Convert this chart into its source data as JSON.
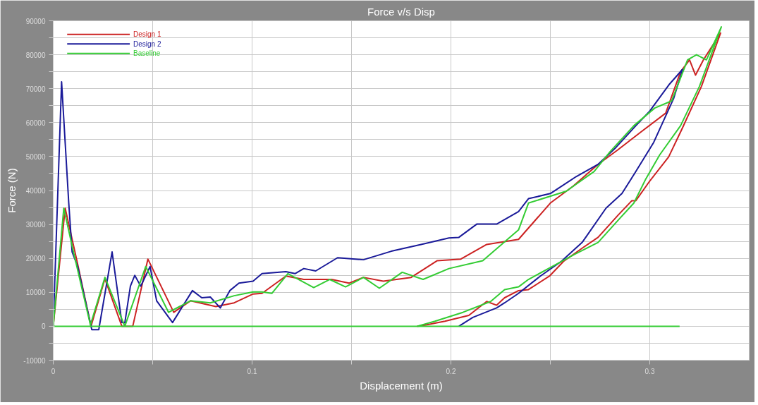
{
  "chart_data": {
    "type": "line",
    "title": "Force v/s Disp",
    "xlabel": "Displacement (m)",
    "ylabel": "Force (N)",
    "xlim": [
      0,
      0.35
    ],
    "ylim": [
      -10000,
      90000
    ],
    "xticks": [
      0,
      {
        "value": 0.05,
        "label": null
      },
      0.1,
      {
        "value": 0.15,
        "label": null
      },
      0.2,
      {
        "value": 0.25,
        "label": null
      },
      0.3
    ],
    "yticks": [
      -10000,
      {
        "value": -5000,
        "label": null
      },
      0,
      {
        "value": 5000,
        "label": null
      },
      10000,
      {
        "value": 15000,
        "label": null
      },
      20000,
      {
        "value": 25000,
        "label": null
      },
      30000,
      {
        "value": 35000,
        "label": null
      },
      40000,
      {
        "value": 45000,
        "label": null
      },
      50000,
      {
        "value": 55000,
        "label": null
      },
      60000,
      {
        "value": 65000,
        "label": null
      },
      70000,
      {
        "value": 75000,
        "label": null
      },
      80000,
      {
        "value": 85000,
        "label": null
      },
      90000
    ],
    "grid": true,
    "legend": "top left",
    "marker": "none",
    "line_style": "solid",
    "series": [
      {
        "name": "Design 1",
        "color": "#cc2222",
        "x": [
          0,
          0.006,
          0.0123,
          0.019,
          0.026,
          0.0345,
          0.04,
          0.0476,
          0.0606,
          0.069,
          0.0818,
          0.091,
          0.1005,
          0.105,
          0.117,
          0.126,
          0.14,
          0.1487,
          0.156,
          0.166,
          0.18,
          0.193,
          0.205,
          0.218,
          0.234,
          0.25,
          0.2615,
          0.274,
          0.284,
          0.295,
          0.308,
          0.3155,
          0.32,
          0.323,
          0.327,
          0.3356,
          0.326,
          0.3165,
          0.3095,
          0.3,
          0.293,
          0.291,
          0.284,
          0.274,
          0.266,
          0.2566,
          0.2496,
          0.239,
          0.234,
          0.227,
          0.223,
          0.218,
          0.209,
          0.197,
          0.1875,
          0.183
        ],
        "values": [
          0,
          34800,
          18300,
          0,
          14000,
          0,
          0,
          19800,
          4100,
          7500,
          5800,
          6900,
          9500,
          9700,
          14800,
          13800,
          13800,
          12700,
          14400,
          13300,
          14400,
          19300,
          19800,
          24100,
          25600,
          36300,
          41300,
          47700,
          52000,
          57000,
          62800,
          75000,
          78500,
          74000,
          78500,
          86400,
          70700,
          58500,
          49900,
          42800,
          37000,
          37000,
          32700,
          26200,
          23000,
          19100,
          14800,
          10800,
          10500,
          8400,
          6200,
          7300,
          3200,
          1500,
          400,
          0
        ]
      },
      {
        "name": "Design 2",
        "color": "#1a1a99",
        "x": [
          0,
          0.0042,
          0.0078,
          0.0095,
          0.0123,
          0.0194,
          0.0229,
          0.0296,
          0.0345,
          0.036,
          0.0388,
          0.041,
          0.044,
          0.0487,
          0.052,
          0.06,
          0.07,
          0.0747,
          0.079,
          0.084,
          0.0888,
          0.0934,
          0.1005,
          0.105,
          0.117,
          0.1216,
          0.126,
          0.132,
          0.143,
          0.156,
          0.17,
          0.185,
          0.199,
          0.204,
          0.213,
          0.223,
          0.234,
          0.239,
          0.25,
          0.263,
          0.274,
          0.283,
          0.293,
          0.3,
          0.31,
          0.3165,
          0.312,
          0.302,
          0.293,
          0.286,
          0.278,
          0.266,
          0.2555,
          0.245,
          0.234,
          0.227,
          0.223,
          0.211,
          0.204
        ],
        "values": [
          0,
          72000,
          36300,
          21900,
          17600,
          -1000,
          -1000,
          21900,
          1100,
          1000,
          11800,
          15000,
          11800,
          17600,
          7500,
          1100,
          10500,
          8400,
          8600,
          5400,
          10500,
          12700,
          13300,
          15500,
          16100,
          15500,
          17000,
          16300,
          20200,
          19600,
          22100,
          24100,
          26000,
          26200,
          30100,
          30100,
          33800,
          37600,
          39100,
          44100,
          47700,
          52700,
          59100,
          63400,
          71400,
          75700,
          67100,
          54200,
          45600,
          39100,
          34800,
          24700,
          19100,
          14800,
          9700,
          6900,
          5400,
          2600,
          0
        ]
      },
      {
        "name": "Baseline",
        "color": "#33cc33",
        "x": [
          0,
          0.0053,
          0.0099,
          0.0187,
          0.026,
          0.036,
          0.0465,
          0.058,
          0.069,
          0.079,
          0.091,
          0.1005,
          0.105,
          0.11,
          0.118,
          0.131,
          0.139,
          0.147,
          0.156,
          0.164,
          0.1755,
          0.186,
          0.199,
          0.216,
          0.234,
          0.239,
          0.258,
          0.272,
          0.28,
          0.292,
          0.3025,
          0.311,
          0.319,
          0.3235,
          0.3285,
          0.336,
          0.325,
          0.3155,
          0.305,
          0.298,
          0.292,
          0.284,
          0.274,
          0.2626,
          0.251,
          0.239,
          0.234,
          0.227,
          0.22,
          0.206,
          0.192,
          0.183,
          null,
          0,
          0.315
        ],
        "values": [
          0,
          34800,
          22600,
          400,
          14400,
          0,
          17600,
          4100,
          7500,
          6900,
          9000,
          10100,
          10100,
          9700,
          15500,
          11400,
          13800,
          11600,
          14400,
          11200,
          15900,
          13800,
          17000,
          19300,
          28400,
          36300,
          39800,
          45600,
          51400,
          59100,
          64300,
          66400,
          78500,
          80000,
          78500,
          88200,
          70700,
          59100,
          50500,
          43400,
          36300,
          31200,
          24700,
          21300,
          17600,
          13800,
          11600,
          10800,
          7300,
          4100,
          1500,
          0,
          null,
          0,
          0
        ]
      }
    ]
  }
}
